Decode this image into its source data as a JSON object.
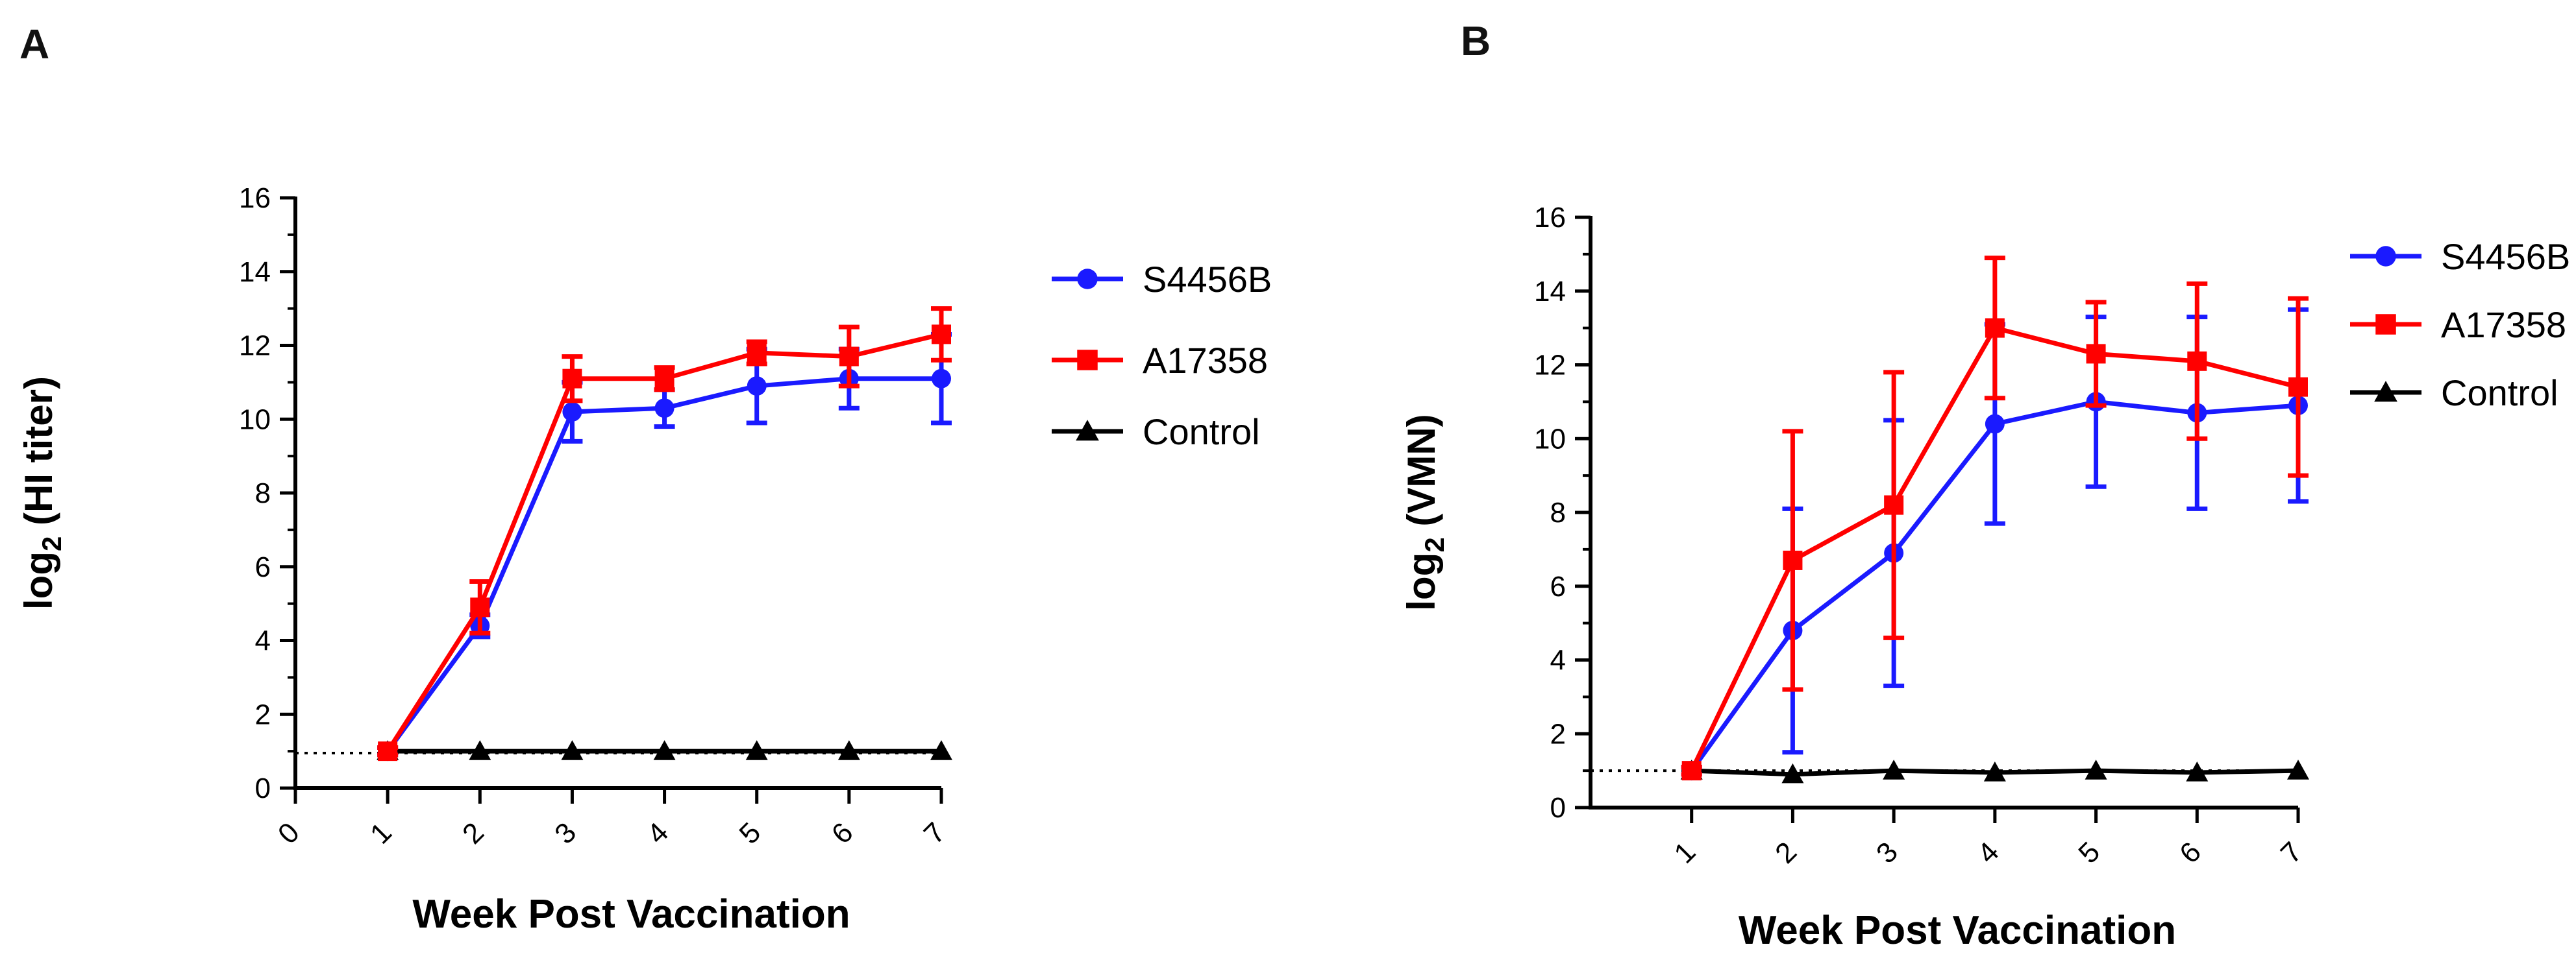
{
  "chart_data": [
    {
      "panel_label": "A",
      "type": "line",
      "xlabel": "Week Post Vaccination",
      "ylabel_main": "log",
      "ylabel_sub": "2",
      "ylabel_rest": " (HI titer)",
      "xlim": [
        0,
        7
      ],
      "ylim": [
        0,
        16
      ],
      "x_ticks": [
        "0",
        "1",
        "2",
        "3",
        "4",
        "5",
        "6",
        "7"
      ],
      "y_ticks": [
        "0",
        "2",
        "4",
        "6",
        "8",
        "10",
        "12",
        "14",
        "16"
      ],
      "baseline": 0.95,
      "legend_position": "right",
      "series": [
        {
          "name": "S4456B",
          "color": "#1a1aff",
          "marker": "circle",
          "x": [
            1,
            2,
            3,
            4,
            5,
            6,
            7
          ],
          "values": [
            1.0,
            4.4,
            10.2,
            10.3,
            10.9,
            11.1,
            11.1
          ],
          "err": [
            0.1,
            0.3,
            0.8,
            0.5,
            1.0,
            0.8,
            1.2
          ]
        },
        {
          "name": "A17358",
          "color": "#ff0000",
          "marker": "square",
          "x": [
            1,
            2,
            3,
            4,
            5,
            6,
            7
          ],
          "values": [
            1.0,
            4.9,
            11.1,
            11.1,
            11.8,
            11.7,
            12.3
          ],
          "err": [
            0.1,
            0.7,
            0.6,
            0.3,
            0.3,
            0.8,
            0.7
          ]
        },
        {
          "name": "Control",
          "color": "#000000",
          "marker": "triangle",
          "x": [
            1,
            2,
            3,
            4,
            5,
            6,
            7
          ],
          "values": [
            1.0,
            1.0,
            1.0,
            1.0,
            1.0,
            1.0,
            1.0
          ],
          "err": [
            0,
            0,
            0,
            0,
            0,
            0,
            0
          ]
        }
      ]
    },
    {
      "panel_label": "B",
      "type": "line",
      "xlabel": "Week Post Vaccination",
      "ylabel_main": "log",
      "ylabel_sub": "2",
      "ylabel_rest": " (VMN)",
      "xlim": [
        0,
        7
      ],
      "ylim": [
        0,
        16
      ],
      "x_ticks": [
        "1",
        "2",
        "3",
        "4",
        "5",
        "6",
        "7"
      ],
      "y_ticks": [
        "0",
        "2",
        "4",
        "6",
        "8",
        "10",
        "12",
        "14",
        "16"
      ],
      "baseline": 1.0,
      "legend_position": "right",
      "series": [
        {
          "name": "S4456B",
          "color": "#1a1aff",
          "marker": "circle",
          "x": [
            1,
            2,
            3,
            4,
            5,
            6,
            7
          ],
          "values": [
            1.0,
            4.8,
            6.9,
            10.4,
            11.0,
            10.7,
            10.9
          ],
          "err": [
            0.1,
            3.3,
            3.6,
            2.7,
            2.3,
            2.6,
            2.6
          ]
        },
        {
          "name": "A17358",
          "color": "#ff0000",
          "marker": "square",
          "x": [
            1,
            2,
            3,
            4,
            5,
            6,
            7
          ],
          "values": [
            1.0,
            6.7,
            8.2,
            13.0,
            12.3,
            12.1,
            11.4
          ],
          "err": [
            0.1,
            3.5,
            3.6,
            1.9,
            1.4,
            2.1,
            2.4
          ]
        },
        {
          "name": "Control",
          "color": "#000000",
          "marker": "triangle",
          "x": [
            1,
            2,
            3,
            4,
            5,
            6,
            7
          ],
          "values": [
            1.0,
            0.9,
            1.0,
            0.95,
            1.0,
            0.95,
            1.0
          ],
          "err": [
            0,
            0,
            0,
            0,
            0,
            0,
            0
          ]
        }
      ]
    }
  ]
}
